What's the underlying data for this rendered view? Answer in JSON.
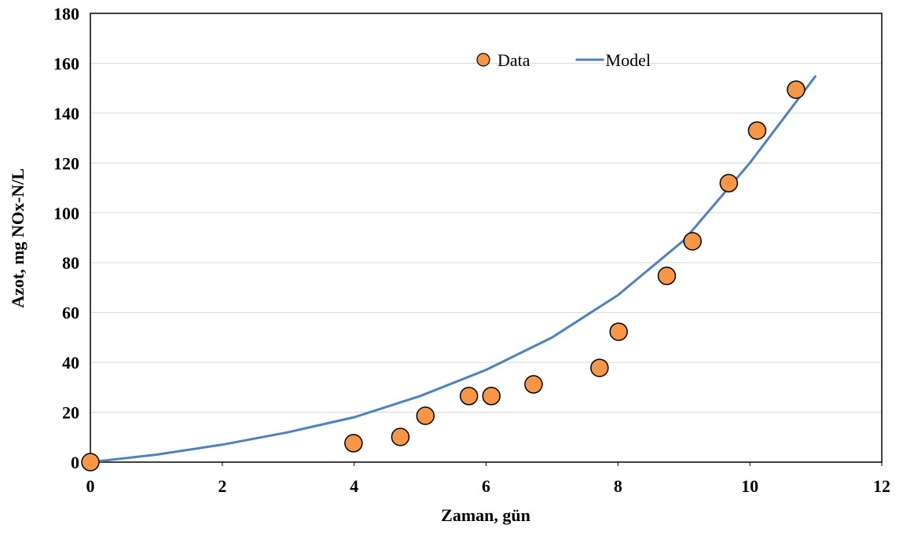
{
  "chart_data": {
    "type": "scatter-line",
    "x_label": "Zaman, gün",
    "y_label": "Azot, mg NOx-N/L",
    "xlim": [
      0,
      12
    ],
    "xticks": [
      0,
      2,
      4,
      6,
      8,
      10,
      12
    ],
    "ylim": [
      0,
      180
    ],
    "yticks": [
      0,
      20,
      40,
      60,
      80,
      100,
      120,
      140,
      160,
      180
    ],
    "grid": true,
    "legend": "top",
    "series": [
      {
        "name": "Data",
        "color": "#f79646",
        "mode": "markers",
        "x": [
          0,
          3.99,
          4.7,
          5.08,
          5.74,
          6.08,
          6.72,
          7.72,
          8.01,
          8.74,
          9.13,
          9.68,
          10.11,
          10.7
        ],
        "values": [
          0,
          7.6,
          10.1,
          18.6,
          26.5,
          26.5,
          31.2,
          37.8,
          52.3,
          74.7,
          88.6,
          111.9,
          133,
          149.4
        ]
      },
      {
        "name": "Model",
        "color": "#4f81bd",
        "mode": "line",
        "x": [
          0,
          1,
          2,
          3,
          4,
          5,
          6,
          7,
          8,
          9,
          10,
          11
        ],
        "values": [
          0,
          3,
          7,
          12,
          18,
          26.5,
          37,
          50,
          67,
          89,
          120,
          155
        ]
      }
    ]
  }
}
